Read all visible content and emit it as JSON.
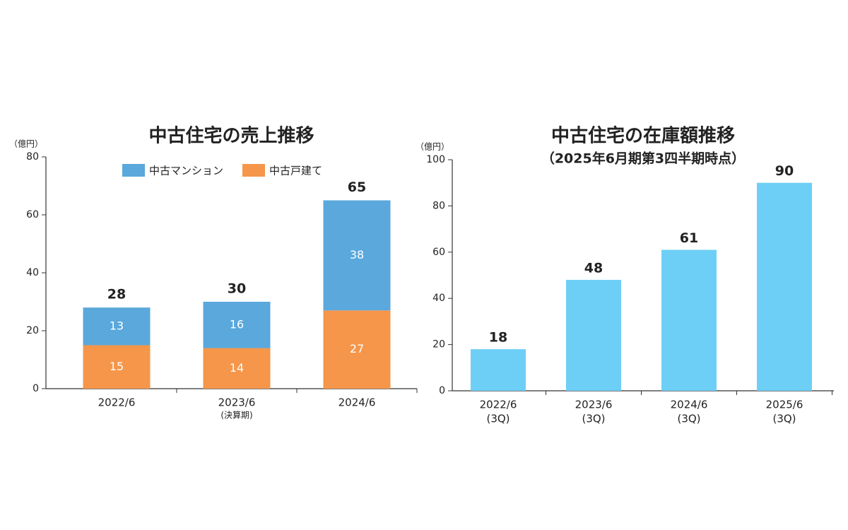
{
  "chart_data": [
    {
      "type": "stacked_bar",
      "title": "中古住宅の売上推移",
      "y_label": "（億円）",
      "categories": [
        "2022/6",
        "2023/6",
        "2024/6"
      ],
      "category_notes": [
        null,
        "(決算期)",
        null
      ],
      "series": [
        {
          "name": "中古戸建て",
          "color": "#f5964a",
          "values": [
            15,
            14,
            27
          ]
        },
        {
          "name": "中古マンション",
          "color": "#5aa8dc",
          "values": [
            13,
            16,
            38
          ]
        }
      ],
      "legend_order": [
        1,
        0
      ],
      "totals": [
        28,
        30,
        65
      ],
      "ylim": [
        0,
        80
      ],
      "yticks": [
        0,
        20,
        40,
        60,
        80
      ]
    },
    {
      "type": "bar",
      "title": "中古住宅の在庫額推移",
      "subtitle": "（2025年6月期第3四半期時点）",
      "y_label": "（億円）",
      "categories": [
        [
          "2022/6",
          "(3Q)"
        ],
        [
          "2023/6",
          "(3Q)"
        ],
        [
          "2024/6",
          "(3Q)"
        ],
        [
          "2025/6",
          "(3Q)"
        ]
      ],
      "values": [
        18,
        48,
        61,
        90
      ],
      "color": "#6dcff6",
      "ylim": [
        0,
        100
      ],
      "yticks": [
        0,
        20,
        40,
        60,
        80,
        100
      ]
    }
  ]
}
